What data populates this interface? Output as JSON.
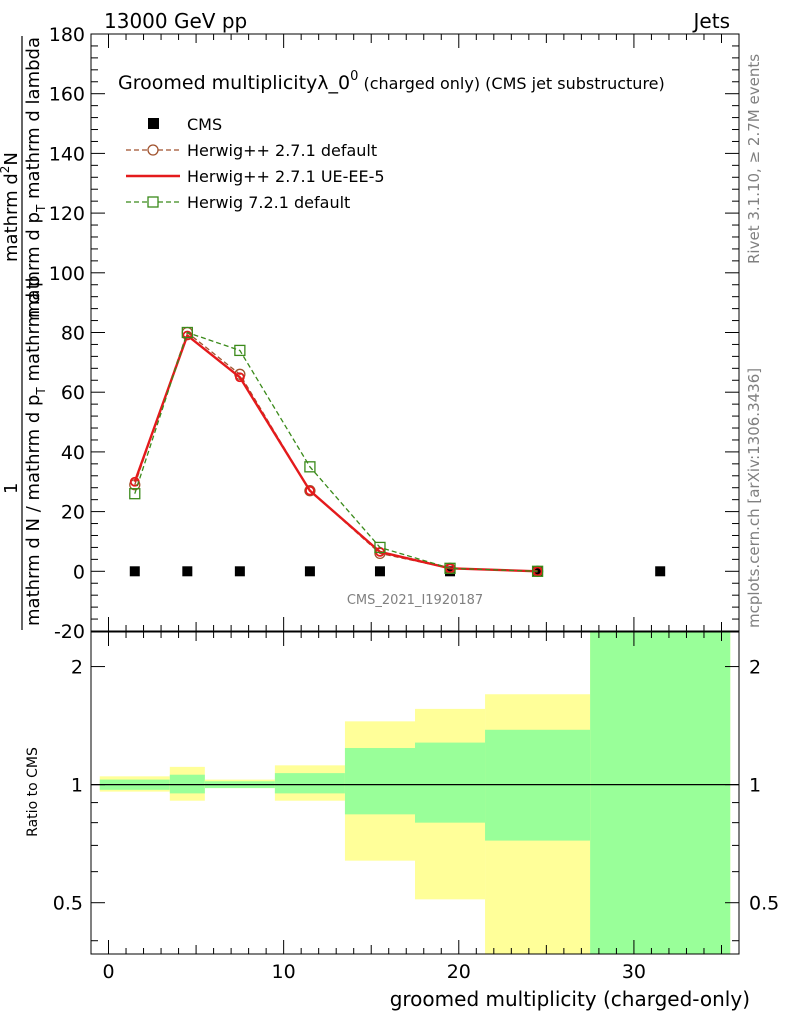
{
  "header": {
    "left": "13000 GeV pp",
    "right": "Jets"
  },
  "side_labels": {
    "rivet": "Rivet 3.1.10, ≥ 2.7M events",
    "mcplots": "mcplots.cern.ch [arXiv:1306.3436]"
  },
  "watermark": "CMS_2021_I1920187",
  "main_plot": {
    "title_main": "Groomed multiplicityλ_0",
    "title_sup": "0",
    "title_suffix": " (charged only) (CMS jet substructure)",
    "ylabel_numerator": "1",
    "ylabel_denominator": "mathrm d N / mathrm d p",
    "ylabel_denominator_sub": "T",
    "ylabel_denominator_rest": " mathrm d p",
    "ylabel_top": "mathrm d",
    "ylabel_top_sup": "2",
    "ylabel_top_rest": "N",
    "ylabel_line2": "mathrm d p",
    "ylabel_line2_sub": "T",
    "ylabel_line2_rest": " mathrm d lambda"
  },
  "chart_data": [
    {
      "type": "scatter",
      "panel": "main",
      "xlim": [
        -1,
        36
      ],
      "ylim": [
        -20,
        180
      ],
      "yticks": [
        -20,
        0,
        20,
        40,
        60,
        80,
        100,
        120,
        140,
        160,
        180
      ],
      "xticks": [
        0,
        10,
        20,
        30
      ],
      "series": [
        {
          "name": "CMS",
          "style": "square-filled",
          "color": "#000000",
          "x": [
            1.5,
            4.5,
            7.5,
            11.5,
            15.5,
            19.5,
            24.5,
            31.5
          ],
          "y": [
            0,
            0,
            0,
            0,
            0,
            0,
            0,
            0
          ]
        },
        {
          "name": "Herwig++ 2.7.1 default",
          "style": "circle-dashed",
          "color": "#a0522d",
          "x": [
            1.5,
            4.5,
            7.5,
            11.5,
            15.5,
            19.5,
            24.5
          ],
          "y": [
            29,
            80,
            66,
            27,
            6,
            1,
            0
          ]
        },
        {
          "name": "Herwig++ 2.7.1 UE-EE-5",
          "style": "solid",
          "color": "#e41a1c",
          "x": [
            1.5,
            4.5,
            7.5,
            11.5,
            15.5,
            19.5,
            24.5
          ],
          "y": [
            30,
            79,
            65,
            27,
            6.5,
            1,
            0
          ]
        },
        {
          "name": "Herwig 7.2.1 default",
          "style": "square-dashed",
          "color": "#3a8a1a",
          "x": [
            1.5,
            4.5,
            7.5,
            11.5,
            15.5,
            19.5,
            24.5
          ],
          "y": [
            26,
            80,
            74,
            35,
            8,
            1,
            0
          ]
        }
      ]
    },
    {
      "type": "area",
      "panel": "ratio",
      "ylabel": "Ratio to CMS",
      "xlabel": "groomed multiplicity (charged-only)",
      "xlim": [
        -1,
        36
      ],
      "ylog": true,
      "ylim": [
        0.37,
        2.45
      ],
      "yticks": [
        0.5,
        1,
        2
      ],
      "ytick_labels": [
        "0.5",
        "1",
        "2"
      ],
      "xticks": [
        0,
        10,
        20,
        30
      ],
      "xtick_labels": [
        "0",
        "10",
        "20",
        "30"
      ],
      "bins": [
        {
          "x0": -0.5,
          "x1": 3.5,
          "yellow": [
            0.96,
            1.05
          ],
          "green": [
            0.97,
            1.03
          ]
        },
        {
          "x0": 3.5,
          "x1": 5.5,
          "yellow": [
            0.91,
            1.11
          ],
          "green": [
            0.95,
            1.06
          ]
        },
        {
          "x0": 5.5,
          "x1": 9.5,
          "yellow": [
            0.98,
            1.03
          ],
          "green": [
            0.98,
            1.02
          ]
        },
        {
          "x0": 9.5,
          "x1": 13.5,
          "yellow": [
            0.91,
            1.12
          ],
          "green": [
            0.95,
            1.07
          ]
        },
        {
          "x0": 13.5,
          "x1": 17.5,
          "yellow": [
            0.64,
            1.45
          ],
          "green": [
            0.84,
            1.24
          ]
        },
        {
          "x0": 17.5,
          "x1": 21.5,
          "yellow": [
            0.51,
            1.56
          ],
          "green": [
            0.8,
            1.28
          ]
        },
        {
          "x0": 21.5,
          "x1": 27.5,
          "yellow": [
            0.37,
            1.7
          ],
          "green": [
            0.72,
            1.38
          ]
        },
        {
          "x0": 27.5,
          "x1": 35.5,
          "yellow": [
            0.37,
            2.45
          ],
          "green": [
            0.37,
            2.45
          ]
        }
      ],
      "colors": {
        "yellow": "#ffff99",
        "green": "#99ff99"
      }
    }
  ]
}
